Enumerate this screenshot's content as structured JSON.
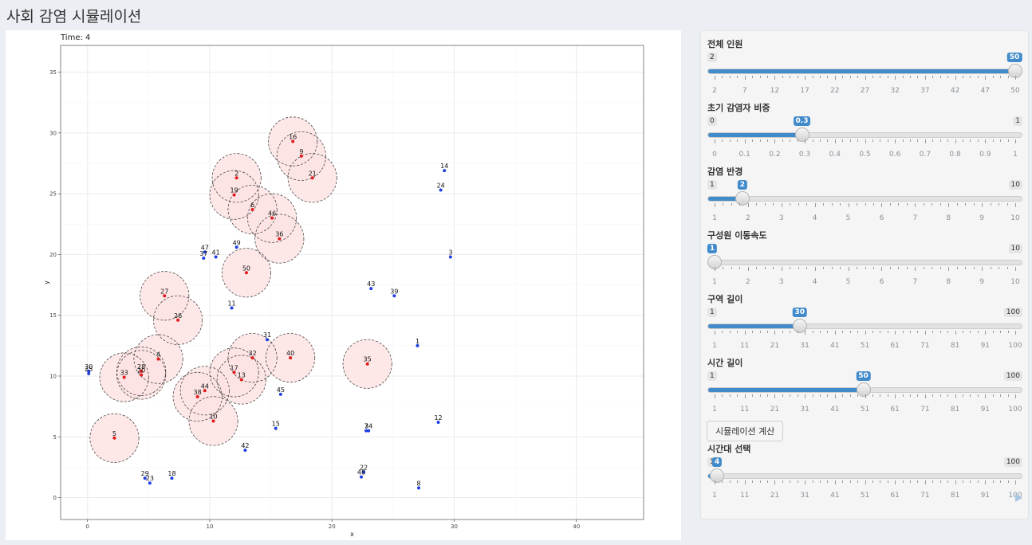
{
  "app": {
    "title": "사회 감염 시뮬레이션"
  },
  "plot": {
    "time_label": "Time: 4",
    "colors": {
      "infected": "#e41a1c",
      "healthy": "#1f3fe0",
      "circle_fill": "#fde3e3",
      "circle_stroke": "#333333"
    }
  },
  "chart_data": {
    "type": "scatter",
    "title": "Time: 4",
    "xlabel": "x",
    "ylabel": "y",
    "xlim": [
      -2.2,
      45.5
    ],
    "ylim": [
      -1.8,
      37.2
    ],
    "xticks": [
      0,
      10,
      20,
      30,
      40
    ],
    "yticks": [
      0,
      5,
      10,
      15,
      20,
      25,
      30,
      35
    ],
    "infection_radius": 2,
    "grid": true,
    "points": [
      {
        "id": "1",
        "x": 27.0,
        "y": 12.5,
        "infected": false
      },
      {
        "id": "2",
        "x": 12.2,
        "y": 26.3,
        "infected": true
      },
      {
        "id": "3",
        "x": 29.7,
        "y": 19.8,
        "infected": false
      },
      {
        "id": "4",
        "x": 5.8,
        "y": 11.4,
        "infected": true
      },
      {
        "id": "5",
        "x": 2.2,
        "y": 4.9,
        "infected": true
      },
      {
        "id": "6",
        "x": 13.5,
        "y": 23.7,
        "infected": true
      },
      {
        "id": "7",
        "x": 22.8,
        "y": 5.5,
        "infected": false
      },
      {
        "id": "8",
        "x": 27.1,
        "y": 0.8,
        "infected": false
      },
      {
        "id": "9",
        "x": 17.5,
        "y": 28.1,
        "infected": true
      },
      {
        "id": "10",
        "x": 10.3,
        "y": 6.3,
        "infected": true
      },
      {
        "id": "11",
        "x": 11.8,
        "y": 15.6,
        "infected": false
      },
      {
        "id": "12",
        "x": 28.7,
        "y": 6.2,
        "infected": false
      },
      {
        "id": "13",
        "x": 12.6,
        "y": 9.7,
        "infected": true
      },
      {
        "id": "14",
        "x": 29.2,
        "y": 26.9,
        "infected": false
      },
      {
        "id": "15",
        "x": 15.4,
        "y": 5.7,
        "infected": false
      },
      {
        "id": "16",
        "x": 16.8,
        "y": 29.3,
        "infected": true
      },
      {
        "id": "17",
        "x": 12.0,
        "y": 10.3,
        "infected": true
      },
      {
        "id": "18",
        "x": 6.9,
        "y": 1.6,
        "infected": false
      },
      {
        "id": "19",
        "x": 12.0,
        "y": 24.9,
        "infected": true
      },
      {
        "id": "20",
        "x": 4.4,
        "y": 10.1,
        "infected": true
      },
      {
        "id": "21",
        "x": 18.4,
        "y": 26.3,
        "infected": true
      },
      {
        "id": "22",
        "x": 22.6,
        "y": 2.1,
        "infected": false
      },
      {
        "id": "23",
        "x": 5.1,
        "y": 1.2,
        "infected": false
      },
      {
        "id": "24",
        "x": 28.9,
        "y": 25.3,
        "infected": false
      },
      {
        "id": "26",
        "x": 7.4,
        "y": 14.6,
        "infected": true
      },
      {
        "id": "27",
        "x": 6.3,
        "y": 16.6,
        "infected": true
      },
      {
        "id": "28",
        "x": 4.4,
        "y": 10.4,
        "infected": true
      },
      {
        "id": "29",
        "x": 4.7,
        "y": 1.6,
        "infected": false
      },
      {
        "id": "30",
        "x": 0.1,
        "y": 10.4,
        "infected": false
      },
      {
        "id": "31",
        "x": 14.7,
        "y": 13.0,
        "infected": false
      },
      {
        "id": "32",
        "x": 13.5,
        "y": 11.5,
        "infected": true
      },
      {
        "id": "33",
        "x": 3.0,
        "y": 9.9,
        "infected": true
      },
      {
        "id": "34",
        "x": 23.0,
        "y": 5.5,
        "infected": false
      },
      {
        "id": "35",
        "x": 22.9,
        "y": 11.0,
        "infected": true
      },
      {
        "id": "36",
        "x": 15.7,
        "y": 21.3,
        "infected": true
      },
      {
        "id": "37",
        "x": 9.5,
        "y": 19.7,
        "infected": false
      },
      {
        "id": "38",
        "x": 9.0,
        "y": 8.3,
        "infected": true
      },
      {
        "id": "40",
        "x": 16.6,
        "y": 11.5,
        "infected": true
      },
      {
        "id": "41",
        "x": 10.5,
        "y": 19.8,
        "infected": false
      },
      {
        "id": "42",
        "x": 12.9,
        "y": 3.9,
        "infected": false
      },
      {
        "id": "43",
        "x": 23.2,
        "y": 17.2,
        "infected": false
      },
      {
        "id": "44",
        "x": 9.6,
        "y": 8.8,
        "infected": true
      },
      {
        "id": "45",
        "x": 15.8,
        "y": 8.5,
        "infected": false
      },
      {
        "id": "46",
        "x": 15.1,
        "y": 23.0,
        "infected": true
      },
      {
        "id": "47",
        "x": 9.6,
        "y": 20.2,
        "infected": false
      },
      {
        "id": "48",
        "x": 22.4,
        "y": 1.7,
        "infected": false
      },
      {
        "id": "49",
        "x": 12.2,
        "y": 20.6,
        "infected": false
      },
      {
        "id": "50",
        "x": 13.0,
        "y": 18.5,
        "infected": true
      },
      {
        "id": "39",
        "x": 25.1,
        "y": 16.6,
        "infected": false
      },
      {
        "id": "25",
        "x": 0.1,
        "y": 10.2,
        "infected": false
      }
    ],
    "label_overrides": {
      "30": "30",
      "25": "25",
      "7": "7",
      "34": "34",
      "48": "48",
      "22": "22"
    }
  },
  "sidebar": {
    "controls": [
      {
        "key": "pop",
        "label": "전체 인원",
        "min": 2,
        "max": 50,
        "value": 50,
        "step": 5,
        "ticks": [
          "2",
          "7",
          "12",
          "17",
          "22",
          "27",
          "32",
          "37",
          "42",
          "47",
          "50"
        ],
        "min_label": "2",
        "max_label": "50",
        "value_label": "50"
      },
      {
        "key": "init",
        "label": "초기 감염자 비중",
        "min": 0,
        "max": 1,
        "value": 0.3,
        "ticks": [
          "0",
          "0.1",
          "0.2",
          "0.3",
          "0.4",
          "0.5",
          "0.6",
          "0.7",
          "0.8",
          "0.9",
          "1"
        ],
        "min_label": "0",
        "max_label": "1",
        "value_label": "0.3"
      },
      {
        "key": "radius",
        "label": "감염 반경",
        "min": 1,
        "max": 10,
        "value": 2,
        "ticks": [
          "1",
          "2",
          "3",
          "4",
          "5",
          "6",
          "7",
          "8",
          "9",
          "10"
        ],
        "min_label": "1",
        "max_label": "10",
        "value_label": "2"
      },
      {
        "key": "speed",
        "label": "구성원 이동속도",
        "min": 1,
        "max": 10,
        "value": 1,
        "ticks": [
          "1",
          "2",
          "3",
          "4",
          "5",
          "6",
          "7",
          "8",
          "9",
          "10"
        ],
        "min_label": "1",
        "max_label": "10",
        "value_label": "1"
      },
      {
        "key": "area",
        "label": "구역 길이",
        "min": 1,
        "max": 100,
        "value": 30,
        "ticks": [
          "1",
          "11",
          "21",
          "31",
          "41",
          "51",
          "61",
          "71",
          "81",
          "91",
          "100"
        ],
        "min_label": "1",
        "max_label": "100",
        "value_label": "30"
      },
      {
        "key": "duration",
        "label": "시간 길이",
        "min": 1,
        "max": 100,
        "value": 50,
        "ticks": [
          "1",
          "11",
          "21",
          "31",
          "41",
          "51",
          "61",
          "71",
          "81",
          "91",
          "100"
        ],
        "min_label": "1",
        "max_label": "100",
        "value_label": "50"
      },
      {
        "key": "time",
        "label": "시간대 선택",
        "min": 1,
        "max": 100,
        "value": 4,
        "ticks": [
          "1",
          "11",
          "21",
          "31",
          "41",
          "51",
          "61",
          "71",
          "81",
          "91",
          "100"
        ],
        "min_label": "1",
        "max_label": "100",
        "value_label": "4"
      }
    ],
    "compute_button": "시뮬레이션 계산",
    "play_icon": "play-icon"
  }
}
